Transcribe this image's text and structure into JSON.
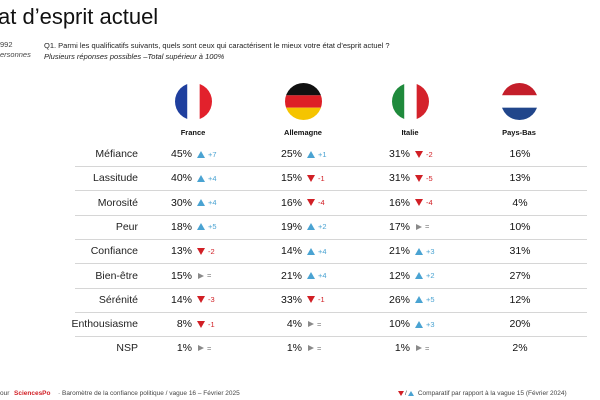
{
  "header": {
    "title": "at d’esprit actuel",
    "sample_line1": "992",
    "sample_line2": "ersonnes",
    "question": "Q1. Parmi les qualificatifs suivants, quels sont ceux qui caractérisent le mieux votre état d’esprit actuel ?",
    "question_note": "Plusieurs réponses possibles –Total supérieur à 100%"
  },
  "colors": {
    "up": "#4aa3d2",
    "down": "#d11f25",
    "same": "#8a8a8a"
  },
  "chart_data": {
    "type": "table",
    "columns": [
      {
        "name": "France",
        "flag": "france-flag"
      },
      {
        "name": "Allemagne",
        "flag": "germany-flag"
      },
      {
        "name": "Italie",
        "flag": "italy-flag"
      },
      {
        "name": "Pays-Bas",
        "flag": "netherlands-flag"
      }
    ],
    "rows": [
      {
        "label": "Méfiance",
        "cells": [
          {
            "value": "45%",
            "trend": "up",
            "delta": "+7"
          },
          {
            "value": "25%",
            "trend": "up",
            "delta": "+1"
          },
          {
            "value": "31%",
            "trend": "down",
            "delta": "-2"
          },
          {
            "value": "16%"
          }
        ]
      },
      {
        "label": "Lassitude",
        "cells": [
          {
            "value": "40%",
            "trend": "up",
            "delta": "+4"
          },
          {
            "value": "15%",
            "trend": "down",
            "delta": "-1"
          },
          {
            "value": "31%",
            "trend": "down",
            "delta": "-5"
          },
          {
            "value": "13%"
          }
        ]
      },
      {
        "label": "Morosité",
        "cells": [
          {
            "value": "30%",
            "trend": "up",
            "delta": "+4"
          },
          {
            "value": "16%",
            "trend": "down",
            "delta": "-4"
          },
          {
            "value": "16%",
            "trend": "down",
            "delta": "-4"
          },
          {
            "value": "4%"
          }
        ]
      },
      {
        "label": "Peur",
        "cells": [
          {
            "value": "18%",
            "trend": "up",
            "delta": "+5"
          },
          {
            "value": "19%",
            "trend": "up",
            "delta": "+2"
          },
          {
            "value": "17%",
            "trend": "same",
            "delta": "="
          },
          {
            "value": "10%"
          }
        ]
      },
      {
        "label": "Confiance",
        "cells": [
          {
            "value": "13%",
            "trend": "down",
            "delta": "-2"
          },
          {
            "value": "14%",
            "trend": "up",
            "delta": "+4"
          },
          {
            "value": "21%",
            "trend": "up",
            "delta": "+3"
          },
          {
            "value": "31%"
          }
        ]
      },
      {
        "label": "Bien-être",
        "cells": [
          {
            "value": "15%",
            "trend": "same",
            "delta": "="
          },
          {
            "value": "21%",
            "trend": "up",
            "delta": "+4"
          },
          {
            "value": "12%",
            "trend": "up",
            "delta": "+2"
          },
          {
            "value": "27%"
          }
        ]
      },
      {
        "label": "Sérénité",
        "cells": [
          {
            "value": "14%",
            "trend": "down",
            "delta": "-3"
          },
          {
            "value": "33%",
            "trend": "down",
            "delta": "-1"
          },
          {
            "value": "26%",
            "trend": "up",
            "delta": "+5"
          },
          {
            "value": "12%"
          }
        ]
      },
      {
        "label": "Enthousiasme",
        "cells": [
          {
            "value": "8%",
            "trend": "down",
            "delta": "-1"
          },
          {
            "value": "4%",
            "trend": "same",
            "delta": "="
          },
          {
            "value": "10%",
            "trend": "up",
            "delta": "+3"
          },
          {
            "value": "20%"
          }
        ]
      },
      {
        "label": "NSP",
        "cells": [
          {
            "value": "1%",
            "trend": "same",
            "delta": "="
          },
          {
            "value": "1%",
            "trend": "same",
            "delta": "="
          },
          {
            "value": "1%",
            "trend": "same",
            "delta": "="
          },
          {
            "value": "2%"
          }
        ]
      }
    ]
  },
  "footer": {
    "left": "our",
    "brand": "SciencesPo",
    "source": "Baromètre de la confiance politique / vague 16 – Février 2025",
    "legend_slash": "/",
    "legend": "Comparatif par rapport à la vague 15 (Février 2024)"
  }
}
